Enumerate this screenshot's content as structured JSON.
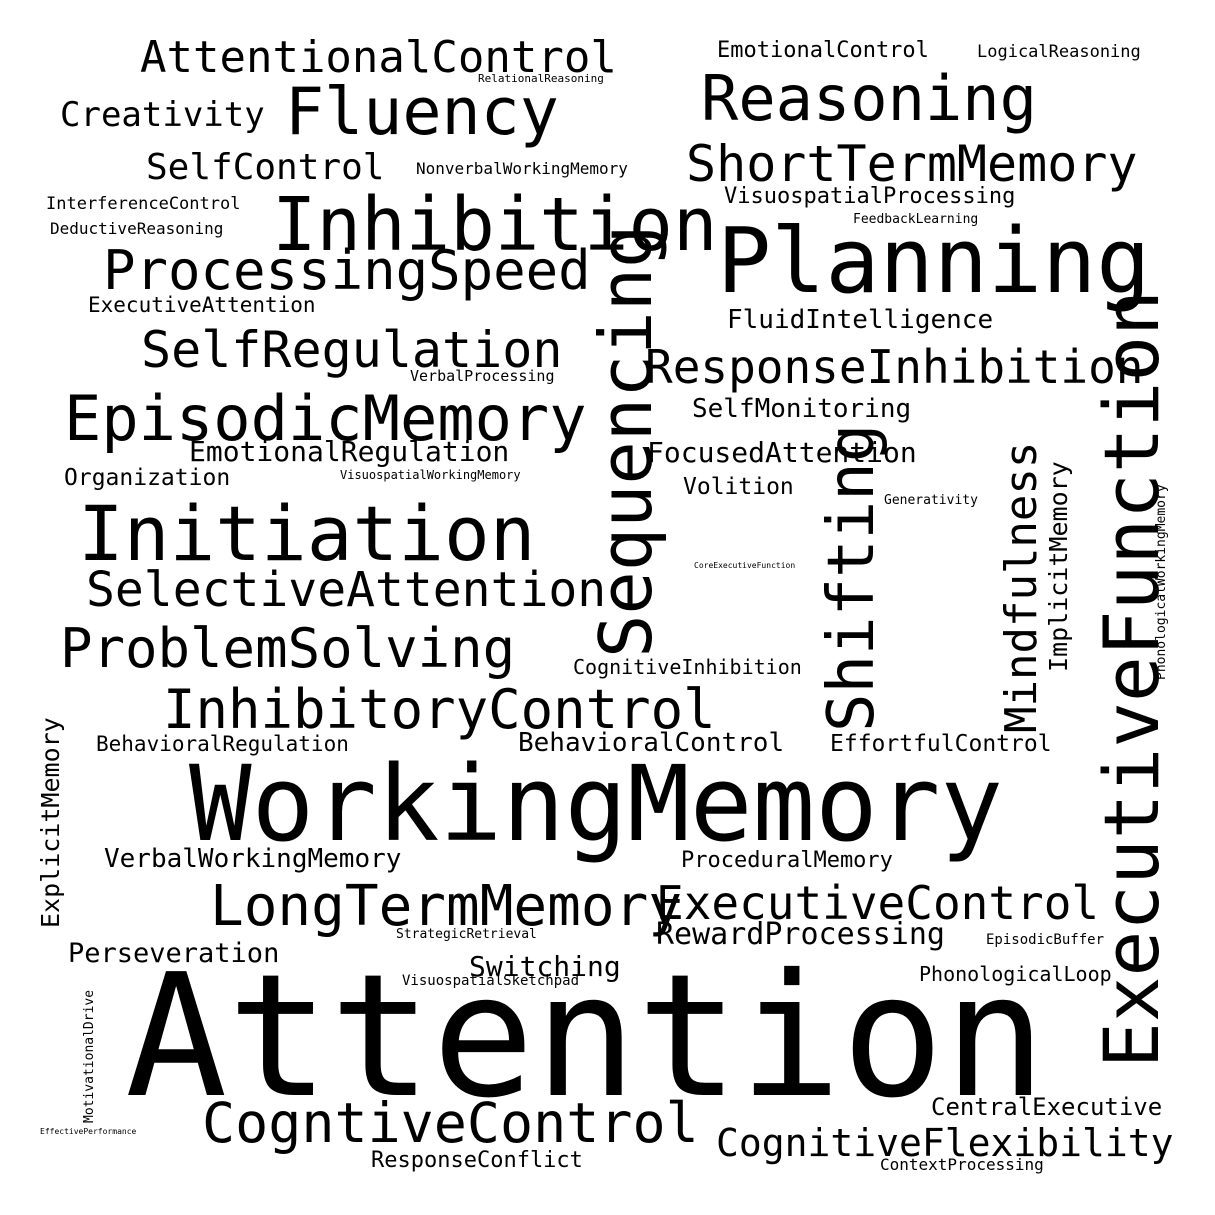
{
  "words": {
    "attention": "Attention",
    "working_memory": "WorkingMemory",
    "executive_function": "ExecutiveFunction",
    "planning": "Planning",
    "initiation": "Initiation",
    "inhibition": "Inhibition",
    "sequencing": "Sequencing",
    "episodic_memory": "EpisodicMemory",
    "reasoning": "Reasoning",
    "fluency": "Fluency",
    "shifting": "Shifting",
    "processing_speed": "ProcessingSpeed",
    "short_term_memory": "ShortTermMemory",
    "long_term_memory": "LongTermMemory",
    "cogntive_control": "CogntiveControl",
    "attentional_control": "AttentionalControl",
    "self_regulation": "SelfRegulation",
    "problem_solving": "ProblemSolving",
    "selective_attention": "SelectiveAttention",
    "inhibitory_control": "InhibitoryControl",
    "response_inhibition": "ResponseInhibition",
    "cognitive_flexibility": "CognitiveFlexibility",
    "executive_control": "ExecutiveControl",
    "mindfulness": "Mindfulness",
    "self_control": "SelfControl",
    "creativity": "Creativity",
    "reward_processing": "RewardProcessing",
    "emotional_regulation": "EmotionalRegulation",
    "focused_attention": "FocusedAttention",
    "verbal_working_memory": "VerbalWorkingMemory",
    "perseveration": "Perseveration",
    "switching": "Switching",
    "behavioral_control": "BehavioralControl",
    "fluid_intelligence": "FluidIntelligence",
    "self_monitoring": "SelfMonitoring",
    "implicit_memory": "ImplicitMemory",
    "explicit_memory": "ExplicitMemory",
    "visuospatial_processing": "VisuospatialProcessing",
    "emotional_control": "EmotionalControl",
    "effortful_control": "EffortfulControl",
    "procedural_memory": "ProceduralMemory",
    "central_executive": "CentralExecutive",
    "behavioral_regulation": "BehavioralRegulation",
    "organization": "Organization",
    "executive_attention": "ExecutiveAttention",
    "response_conflict": "ResponseConflict",
    "cognitive_inhibition": "CognitiveInhibition",
    "volition": "Volition",
    "phonological_loop": "PhonologicalLoop",
    "interference_control": "InterferenceControl",
    "deductive_reasoning": "DeductiveReasoning",
    "nonverbal_working_memory": "NonverbalWorkingMemory",
    "logical_reasoning": "LogicalReasoning",
    "verbal_processing": "VerbalProcessing",
    "context_processing": "ContextProcessing",
    "visuospatial_working_memory": "VisuospatialWorkingMemory",
    "relational_reasoning": "RelationalReasoning",
    "feedback_learning": "FeedbackLearning",
    "generativity": "Generativity",
    "strategic_retrieval": "StrategicRetrieval",
    "visuospatial_sketchpad": "VisuospatialSketchpad",
    "episodic_buffer": "EpisodicBuffer",
    "phonological_working_memory": "PhonologicalWorkingMemory",
    "motivational_drive": "MotivationalDrive",
    "core_executive_function": "CoreExecutiveFunction",
    "effective_performance": "EffectivePerformance"
  }
}
